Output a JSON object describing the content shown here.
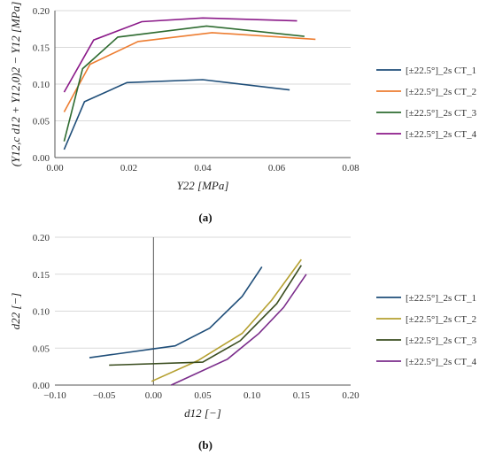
{
  "figure": {
    "caption_a": "(a)",
    "caption_b": "(b)"
  },
  "chart_data": [
    {
      "type": "line",
      "title": "",
      "xlabel": "Y22 [MPa]",
      "ylabel": "(Y12,c d12 + Y12,0)2 − Y12 [MPa]",
      "xlim": [
        0,
        0.08
      ],
      "ylim": [
        0,
        0.2
      ],
      "xticks": [
        "0.00",
        "0.02",
        "0.04",
        "0.06",
        "0.08"
      ],
      "yticks": [
        "0.00",
        "0.05",
        "0.10",
        "0.15",
        "0.20"
      ],
      "grid": true,
      "legend": "right",
      "series": [
        {
          "name": "[±22.5°]_2s CT_1",
          "color": "#1f4e79",
          "x": [
            0.0025,
            0.008,
            0.0195,
            0.04,
            0.0635
          ],
          "y": [
            0.011,
            0.076,
            0.102,
            0.106,
            0.092
          ]
        },
        {
          "name": "[±22.5°]_2s CT_2",
          "color": "#ed7d31",
          "x": [
            0.0025,
            0.0095,
            0.0225,
            0.0425,
            0.0705
          ],
          "y": [
            0.062,
            0.127,
            0.158,
            0.17,
            0.161
          ]
        },
        {
          "name": "[±22.5°]_2s CT_3",
          "color": "#2e6b30",
          "x": [
            0.0025,
            0.0075,
            0.017,
            0.041,
            0.0675
          ],
          "y": [
            0.022,
            0.121,
            0.164,
            0.179,
            0.165
          ]
        },
        {
          "name": "[±22.5°]_2s CT_4",
          "color": "#8b1a89",
          "x": [
            0.0025,
            0.0105,
            0.0235,
            0.04,
            0.0655
          ],
          "y": [
            0.089,
            0.16,
            0.185,
            0.19,
            0.186
          ]
        }
      ]
    },
    {
      "type": "line",
      "title": "",
      "xlabel": "d12 [−]",
      "ylabel": "d22 [−]",
      "xlim": [
        -0.1,
        0.2
      ],
      "ylim": [
        0,
        0.2
      ],
      "xticks": [
        "−0.10",
        "−0.05",
        "0.00",
        "0.05",
        "0.10",
        "0.15",
        "0.20"
      ],
      "yticks": [
        "0.00",
        "0.05",
        "0.10",
        "0.15",
        "0.20"
      ],
      "grid": true,
      "legend": "right",
      "series": [
        {
          "name": "[±22.5°]_2s CT_1",
          "color": "#1f4e79",
          "x": [
            -0.065,
            0.0,
            0.022,
            0.057,
            0.09,
            0.11
          ],
          "y": [
            0.037,
            0.049,
            0.053,
            0.077,
            0.12,
            0.16
          ]
        },
        {
          "name": "[±22.5°]_2s CT_2",
          "color": "#b5a030",
          "x": [
            -0.002,
            0.045,
            0.09,
            0.12,
            0.15
          ],
          "y": [
            0.005,
            0.033,
            0.07,
            0.115,
            0.17
          ]
        },
        {
          "name": "[±22.5°]_2s CT_3",
          "color": "#3a4d1f",
          "x": [
            -0.045,
            0.05,
            0.088,
            0.125,
            0.15
          ],
          "y": [
            0.027,
            0.031,
            0.06,
            0.11,
            0.162
          ]
        },
        {
          "name": "[±22.5°]_2s CT_4",
          "color": "#7b2d8b",
          "x": [
            0.018,
            0.075,
            0.107,
            0.132,
            0.155
          ],
          "y": [
            0.0,
            0.035,
            0.07,
            0.105,
            0.15
          ]
        }
      ]
    }
  ]
}
